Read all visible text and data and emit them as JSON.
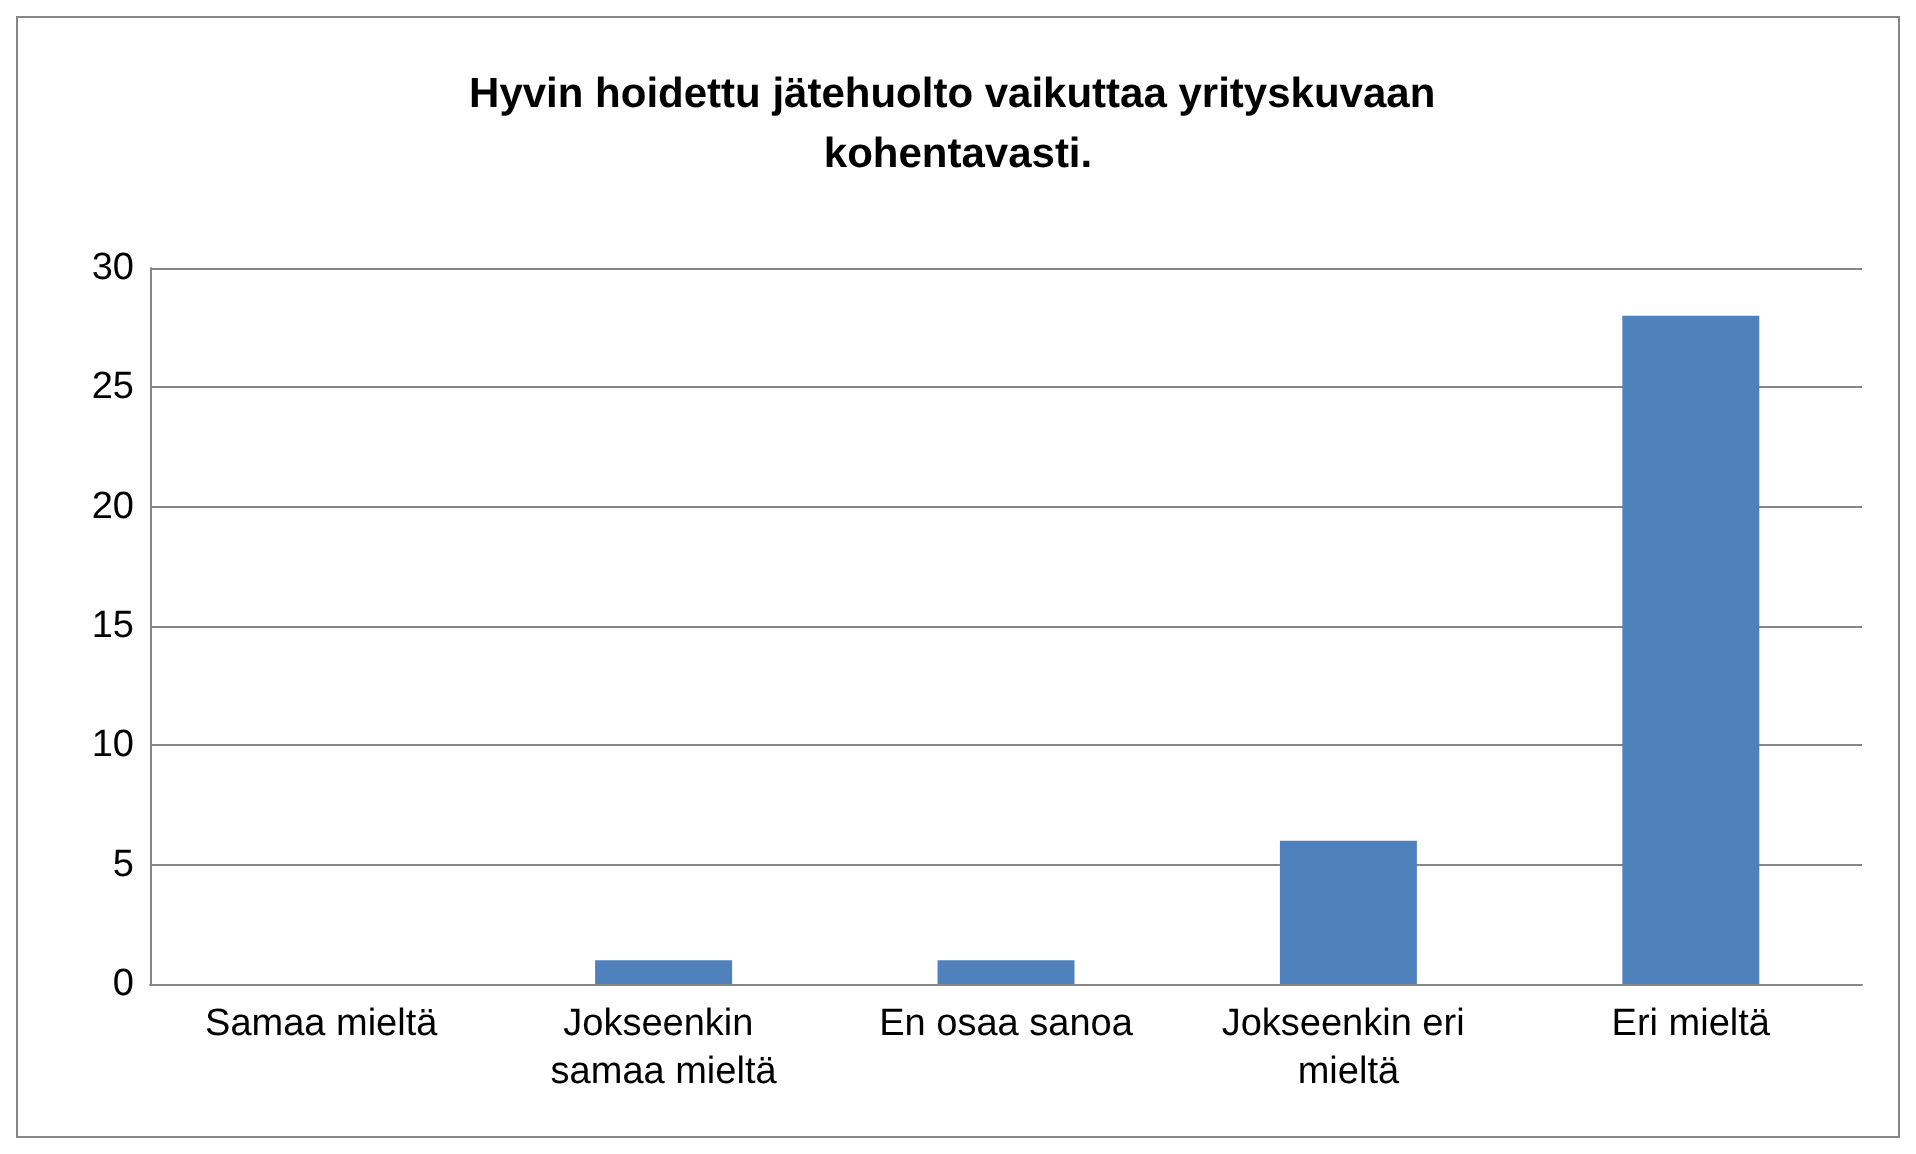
{
  "chart_data": {
    "type": "bar",
    "title": "Hyvin hoidettu jätehuolto vaikuttaa yrityskuvaan kohentavasti.",
    "categories": [
      "Samaa mieltä",
      "Jokseenkin samaa mieltä",
      "En osaa sanoa",
      "Jokseenkin eri mieltä",
      "Eri mieltä"
    ],
    "values": [
      0,
      1,
      1,
      6,
      28
    ],
    "color": "#4f81bd",
    "ylim": [
      0,
      30
    ],
    "yticks": [
      0,
      5,
      10,
      15,
      20,
      25,
      30
    ],
    "grid": "y"
  }
}
